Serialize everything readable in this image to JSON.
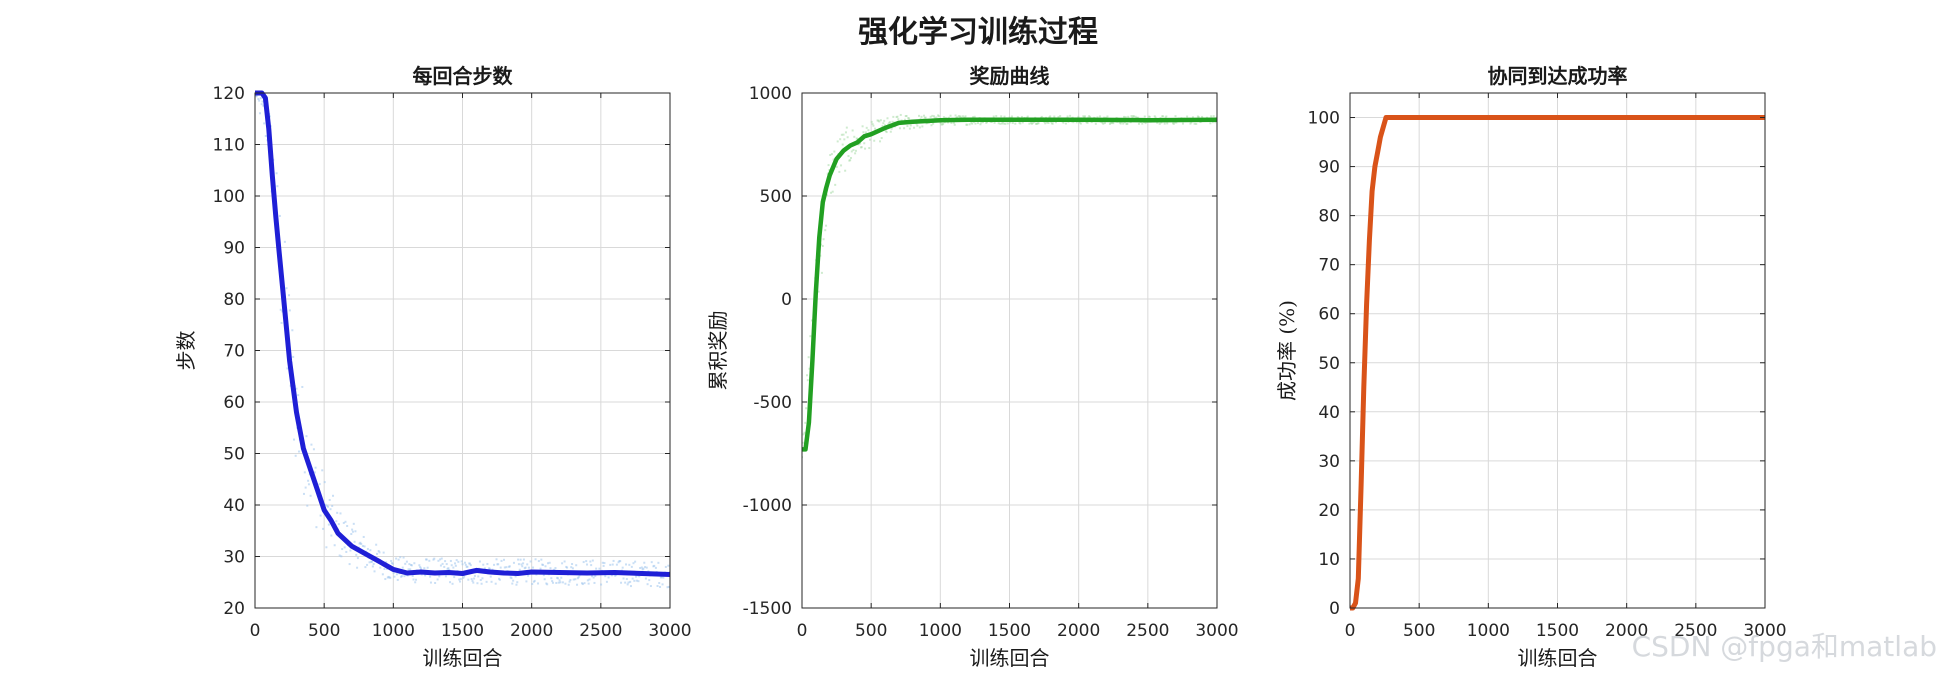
{
  "figure_title": "强化学习训练过程",
  "watermark": "CSDN @fpga和matlab",
  "chart_data": [
    {
      "type": "line",
      "title": "每回合步数",
      "xlabel": "训练回合",
      "ylabel": "步数",
      "xlim": [
        0,
        3000
      ],
      "ylim": [
        20,
        120
      ],
      "xticks": [
        0,
        500,
        1000,
        1500,
        2000,
        2500,
        3000
      ],
      "yticks": [
        20,
        30,
        40,
        50,
        60,
        70,
        80,
        90,
        100,
        110,
        120
      ],
      "grid": true,
      "series": [
        {
          "kind": "moving-average",
          "color": "#1f1fd6",
          "x": [
            0,
            50,
            75,
            100,
            125,
            150,
            175,
            200,
            250,
            300,
            350,
            400,
            450,
            500,
            550,
            600,
            700,
            800,
            900,
            1000,
            1100,
            1200,
            1300,
            1400,
            1500,
            1600,
            1700,
            1800,
            1900,
            2000,
            2200,
            2400,
            2600,
            2800,
            3000
          ],
          "y": [
            120,
            120,
            119,
            113,
            104,
            96,
            89,
            82,
            68,
            58,
            51,
            47,
            43,
            39,
            37,
            34.5,
            32,
            30.5,
            29,
            27.5,
            26.8,
            27,
            26.8,
            26.9,
            26.7,
            27.3,
            27,
            26.8,
            26.7,
            27,
            26.9,
            26.8,
            26.9,
            26.7,
            26.5
          ]
        },
        {
          "kind": "raw-scatter",
          "color": "#9ec4ec",
          "trend_x": [
            0,
            100,
            200,
            300,
            400,
            500,
            600,
            800,
            1000,
            1500,
            2000,
            2500,
            3000
          ],
          "trend_y": [
            120,
            113,
            82,
            58,
            47,
            39,
            34.5,
            30.5,
            27.5,
            27,
            27,
            26.9,
            26.5
          ],
          "spread": [
            0,
            6,
            14,
            12,
            9,
            7,
            5,
            3.5,
            2.5,
            2.5,
            2.5,
            2.5,
            2.5
          ]
        }
      ]
    },
    {
      "type": "line",
      "title": "奖励曲线",
      "xlabel": "训练回合",
      "ylabel": "累积奖励",
      "xlim": [
        0,
        3000
      ],
      "ylim": [
        -1500,
        1000
      ],
      "xticks": [
        0,
        500,
        1000,
        1500,
        2000,
        2500,
        3000
      ],
      "yticks": [
        -1500,
        -1000,
        -500,
        0,
        500,
        1000
      ],
      "grid": true,
      "series": [
        {
          "kind": "moving-average",
          "color": "#22a022",
          "x": [
            0,
            25,
            50,
            75,
            100,
            125,
            150,
            175,
            200,
            250,
            300,
            350,
            400,
            450,
            500,
            600,
            700,
            800,
            1000,
            1200,
            1500,
            2000,
            2500,
            3000
          ],
          "y": [
            -730,
            -730,
            -600,
            -300,
            30,
            300,
            470,
            540,
            600,
            680,
            720,
            745,
            760,
            790,
            800,
            830,
            855,
            860,
            868,
            870,
            870,
            870,
            868,
            870
          ]
        },
        {
          "kind": "raw-scatter",
          "color": "#a8dba8",
          "trend_x": [
            0,
            100,
            200,
            300,
            400,
            500,
            700,
            1000,
            1500,
            2000,
            2500,
            3000
          ],
          "trend_y": [
            -730,
            30,
            600,
            720,
            760,
            800,
            855,
            868,
            870,
            870,
            868,
            870
          ],
          "spread": [
            40,
            180,
            140,
            110,
            80,
            60,
            40,
            25,
            20,
            20,
            20,
            20
          ]
        }
      ]
    },
    {
      "type": "line",
      "title": "协同到达成功率",
      "xlabel": "训练回合",
      "ylabel": "成功率 (%)",
      "xlim": [
        0,
        3000
      ],
      "ylim": [
        0,
        105
      ],
      "xticks": [
        0,
        500,
        1000,
        1500,
        2000,
        2500,
        3000
      ],
      "yticks": [
        0,
        10,
        20,
        30,
        40,
        50,
        60,
        70,
        80,
        90,
        100
      ],
      "grid": true,
      "series": [
        {
          "kind": "success-rate",
          "color": "#d95319",
          "x": [
            0,
            20,
            40,
            60,
            80,
            100,
            120,
            140,
            160,
            180,
            200,
            220,
            240,
            260,
            280,
            3000
          ],
          "y": [
            0,
            0,
            1,
            6,
            25,
            45,
            62,
            75,
            85,
            90,
            93,
            96,
            98,
            100,
            100,
            100
          ]
        }
      ]
    }
  ]
}
